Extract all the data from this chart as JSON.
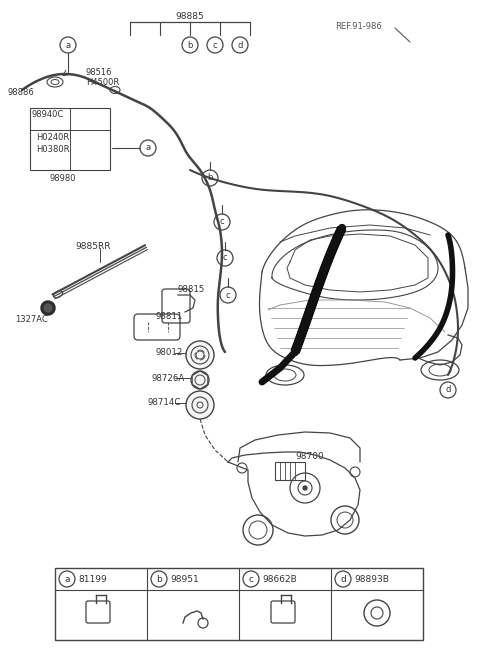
{
  "bg_color": "#ffffff",
  "line_color": "#444444",
  "text_color": "#333333",
  "legend_items": [
    {
      "letter": "a",
      "code": "81199"
    },
    {
      "letter": "b",
      "code": "98951"
    },
    {
      "letter": "c",
      "code": "98662B"
    },
    {
      "letter": "d",
      "code": "98893B"
    }
  ]
}
